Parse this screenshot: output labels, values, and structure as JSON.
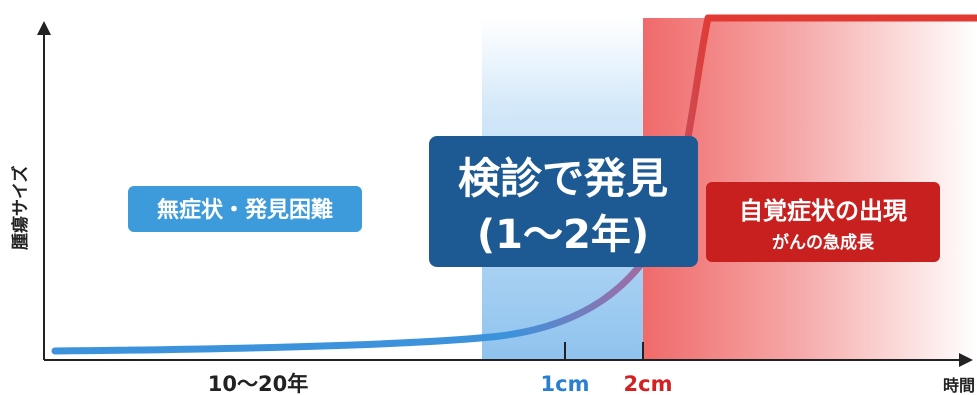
{
  "axes": {
    "y_label": "腫瘍サイズ",
    "x_label": "時間"
  },
  "phases": {
    "asymptomatic": "無症状・発見困難",
    "screening_line1": "検診で発見",
    "screening_line2": "(1〜2年)",
    "symptomatic_line1": "自覚症状の出現",
    "symptomatic_line2": "がんの急成長"
  },
  "ticks": {
    "duration": "10〜20年",
    "size_1cm": "1cm",
    "size_2cm": "2cm"
  },
  "colors": {
    "curve": "#3a8fd8",
    "screening_band": "#a9d2f3",
    "screening_box": "#1d5a93",
    "asymptomatic_box": "#3d9bdc",
    "symptomatic_box": "#c8201e",
    "symptomatic_band": "#f07a7a",
    "tick_1cm": "#2b7fd0",
    "tick_2cm": "#d42020"
  }
}
